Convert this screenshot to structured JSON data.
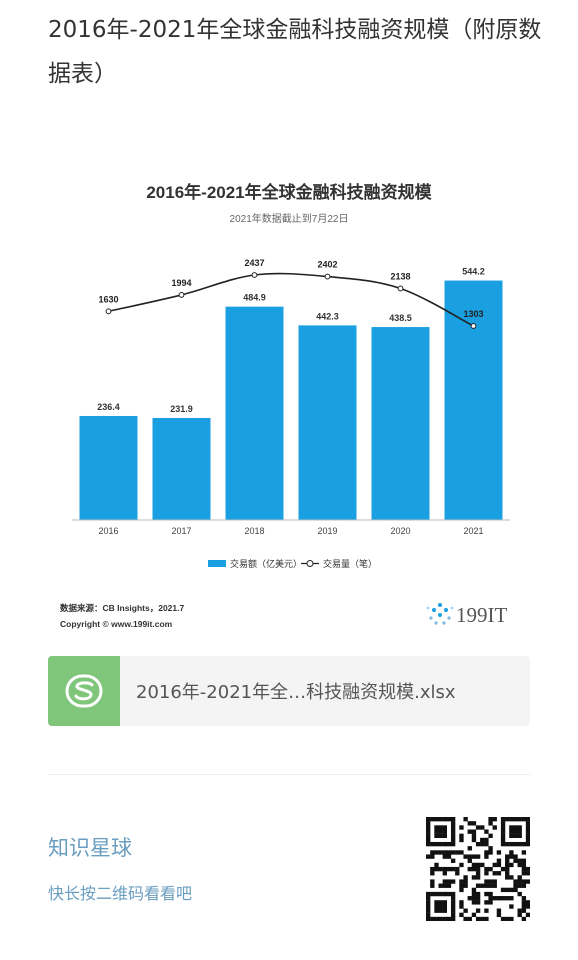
{
  "page": {
    "title": "2016年-2021年全球金融科技融资规模（附原数据表）"
  },
  "chart_data": {
    "type": "bar",
    "title": "2016年-2021年全球金融科技融资规模",
    "subtitle": "2021年数据截止到7月22日",
    "categories": [
      "2016",
      "2017",
      "2018",
      "2019",
      "2020",
      "2021"
    ],
    "series": [
      {
        "name": "交易额（亿美元）",
        "type": "bar",
        "values": [
          236.4,
          231.9,
          484.9,
          442.3,
          438.5,
          544.2
        ],
        "color": "#1a9fe0"
      },
      {
        "name": "交易量（笔）",
        "type": "line",
        "values": [
          1630,
          1994,
          2437,
          2402,
          2138,
          1303
        ],
        "color": "#222222"
      }
    ],
    "legend_position": "bottom",
    "grid": false,
    "source": "数据来源：CB Insights，2021.7",
    "copyright": "Copyright © www.199it.com",
    "logo_text": "199IT"
  },
  "attachment": {
    "file_name": "2016年-2021年全…科技融资规模.xlsx",
    "icon": "spreadsheet-icon",
    "icon_color": "#7fc57a"
  },
  "promo": {
    "title": "知识星球",
    "subtitle": "快长按二维码看看吧",
    "color": "#6a9ec0"
  }
}
